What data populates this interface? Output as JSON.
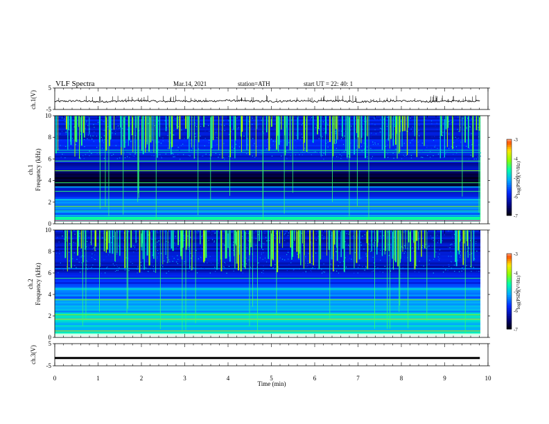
{
  "header": {
    "title": "VLF  Spectra",
    "date": "Mar.14, 2021",
    "station": "station=ATH",
    "start": "start  UT  =   22: 40: 1"
  },
  "chart_data": [
    {
      "type": "line",
      "panel": "ch1-waveform",
      "ylabel": "ch.1(V)",
      "ylim": [
        -5,
        5
      ],
      "yticks": [
        "5",
        "-5"
      ],
      "x": [
        0,
        0.5,
        1,
        1.5,
        2,
        2.5,
        3,
        3.5,
        4,
        4.5,
        5,
        5.5,
        6,
        6.5,
        7,
        7.5,
        8,
        8.5,
        9,
        9.5,
        9.8
      ],
      "values": [
        -1.3,
        -1.0,
        -1.4,
        -1.1,
        -0.9,
        -1.3,
        -1.0,
        -1.2,
        -0.8,
        -1.1,
        -1.3,
        -1.0,
        -1.2,
        -0.9,
        -1.4,
        -1.1,
        -1.0,
        -1.3,
        -1.2,
        -1.0,
        -1.1
      ]
    },
    {
      "type": "heatmap",
      "panel": "ch1-spectrogram",
      "ylabel": "ch.1\nFrequency  (kHz)",
      "ylim": [
        0,
        10
      ],
      "yticks": [
        "0",
        "2",
        "4",
        "6",
        "8",
        "10"
      ],
      "colorbar_label": "log(PSD)(V²/Hz)",
      "colorbar_ticks": [
        "-3",
        "-4",
        "-5",
        "-6",
        "-7"
      ],
      "colorbar_range": [
        -7,
        -3
      ]
    },
    {
      "type": "heatmap",
      "panel": "ch2-spectrogram",
      "ylabel": "ch.2\nFrequency  (kHz)",
      "ylim": [
        0,
        10
      ],
      "yticks": [
        "0",
        "2",
        "4",
        "6",
        "8",
        "10"
      ],
      "colorbar_label": "log(PSD)(V²/Hz)",
      "colorbar_ticks": [
        "-3",
        "-4",
        "-5",
        "-6",
        "-7"
      ],
      "colorbar_range": [
        -7,
        -3
      ]
    },
    {
      "type": "line",
      "panel": "ch3-waveform",
      "ylabel": "ch.3(V)",
      "ylim": [
        -5,
        5
      ],
      "yticks": [
        "5",
        "-5"
      ],
      "x": [
        0,
        9.8
      ],
      "values": [
        -1.5,
        -1.5
      ]
    }
  ],
  "x_axis": {
    "label": "Time  (min)",
    "range": [
      0,
      10
    ],
    "ticks": [
      "0",
      "1",
      "2",
      "3",
      "4",
      "5",
      "6",
      "7",
      "8",
      "9",
      "10"
    ]
  },
  "labels": {
    "ch1_ylabel": "ch.1(V)",
    "ch1spec_ylabel_a": "ch.1",
    "ch1spec_ylabel_b": "Frequency  (kHz)",
    "ch2spec_ylabel_a": "ch.2",
    "ch2spec_ylabel_b": "Frequency  (kHz)",
    "ch3_ylabel": "ch.3(V)",
    "colorbar_label": "log(PSD)(V²/Hz)"
  }
}
